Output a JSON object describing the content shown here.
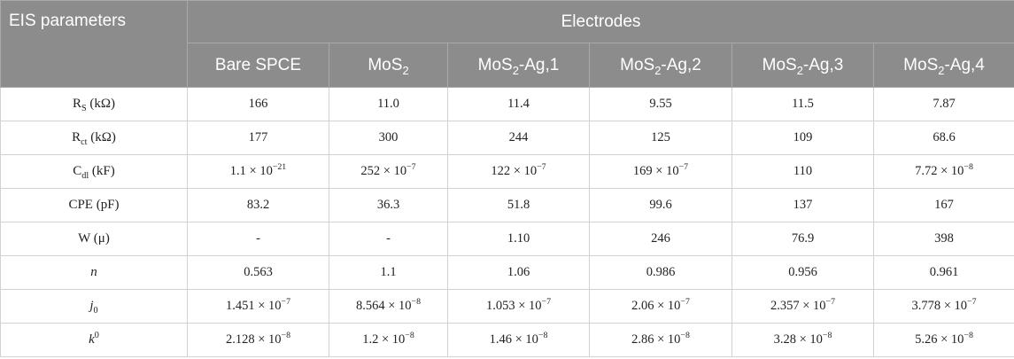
{
  "header": {
    "corner": "EIS parameters",
    "group": "Electrodes",
    "columns": [
      {
        "pre": "Bare SPCE",
        "sub": "",
        "post": ""
      },
      {
        "pre": "MoS",
        "sub": "2",
        "post": ""
      },
      {
        "pre": "MoS",
        "sub": "2",
        "post": "-Ag,1"
      },
      {
        "pre": "MoS",
        "sub": "2",
        "post": "-Ag,2"
      },
      {
        "pre": "MoS",
        "sub": "2",
        "post": "-Ag,3"
      },
      {
        "pre": "MoS",
        "sub": "2",
        "post": "-Ag,4"
      }
    ]
  },
  "rows": [
    {
      "label": {
        "base": "R",
        "sub": "S",
        "tail": " (kΩ)"
      },
      "cells": [
        {
          "m": "166"
        },
        {
          "m": "11.0"
        },
        {
          "m": "11.4"
        },
        {
          "m": "9.55"
        },
        {
          "m": "11.5"
        },
        {
          "m": "7.87"
        }
      ]
    },
    {
      "label": {
        "base": "R",
        "sub": "ct",
        "tail": " (kΩ)"
      },
      "cells": [
        {
          "m": "177"
        },
        {
          "m": "300"
        },
        {
          "m": "244"
        },
        {
          "m": "125"
        },
        {
          "m": "109"
        },
        {
          "m": "68.6"
        }
      ]
    },
    {
      "label": {
        "base": "C",
        "sub": "dl",
        "tail": " (kF)"
      },
      "cells": [
        {
          "m": "1.1 × 10",
          "e": "−21"
        },
        {
          "m": "252 × 10",
          "e": "−7"
        },
        {
          "m": "122 × 10",
          "e": "−7"
        },
        {
          "m": "169 × 10",
          "e": "−7"
        },
        {
          "m": "110"
        },
        {
          "m": "7.72 × 10",
          "e": "−8"
        }
      ]
    },
    {
      "label": {
        "base": "CPE (pF)"
      },
      "cells": [
        {
          "m": "83.2"
        },
        {
          "m": "36.3"
        },
        {
          "m": "51.8"
        },
        {
          "m": "99.6"
        },
        {
          "m": "137"
        },
        {
          "m": "167"
        }
      ]
    },
    {
      "label": {
        "base": "W (μ)"
      },
      "cells": [
        {
          "m": "-"
        },
        {
          "m": "-"
        },
        {
          "m": "1.10"
        },
        {
          "m": "246"
        },
        {
          "m": "76.9"
        },
        {
          "m": "398"
        }
      ]
    },
    {
      "label": {
        "base": "n",
        "italic": true
      },
      "cells": [
        {
          "m": "0.563"
        },
        {
          "m": "1.1"
        },
        {
          "m": "1.06"
        },
        {
          "m": "0.986"
        },
        {
          "m": "0.956"
        },
        {
          "m": "0.961"
        }
      ]
    },
    {
      "label": {
        "base": "j",
        "sub": "0",
        "italic": true
      },
      "cells": [
        {
          "m": "1.451 × 10",
          "e": "−7"
        },
        {
          "m": "8.564 × 10",
          "e": "−8"
        },
        {
          "m": "1.053 × 10",
          "e": "−7"
        },
        {
          "m": "2.06 × 10",
          "e": "−7"
        },
        {
          "m": "2.357 × 10",
          "e": "−7"
        },
        {
          "m": "3.778 × 10",
          "e": "−7"
        }
      ]
    },
    {
      "label": {
        "base": "k",
        "sup": "0",
        "italic": true
      },
      "cells": [
        {
          "m": "2.128 × 10",
          "e": "−8"
        },
        {
          "m": "1.2 × 10",
          "e": "−8"
        },
        {
          "m": "1.46 × 10",
          "e": "−8"
        },
        {
          "m": "2.86 × 10",
          "e": "−8"
        },
        {
          "m": "3.28 × 10",
          "e": "−8"
        },
        {
          "m": "5.26 × 10",
          "e": "−8"
        }
      ]
    }
  ]
}
